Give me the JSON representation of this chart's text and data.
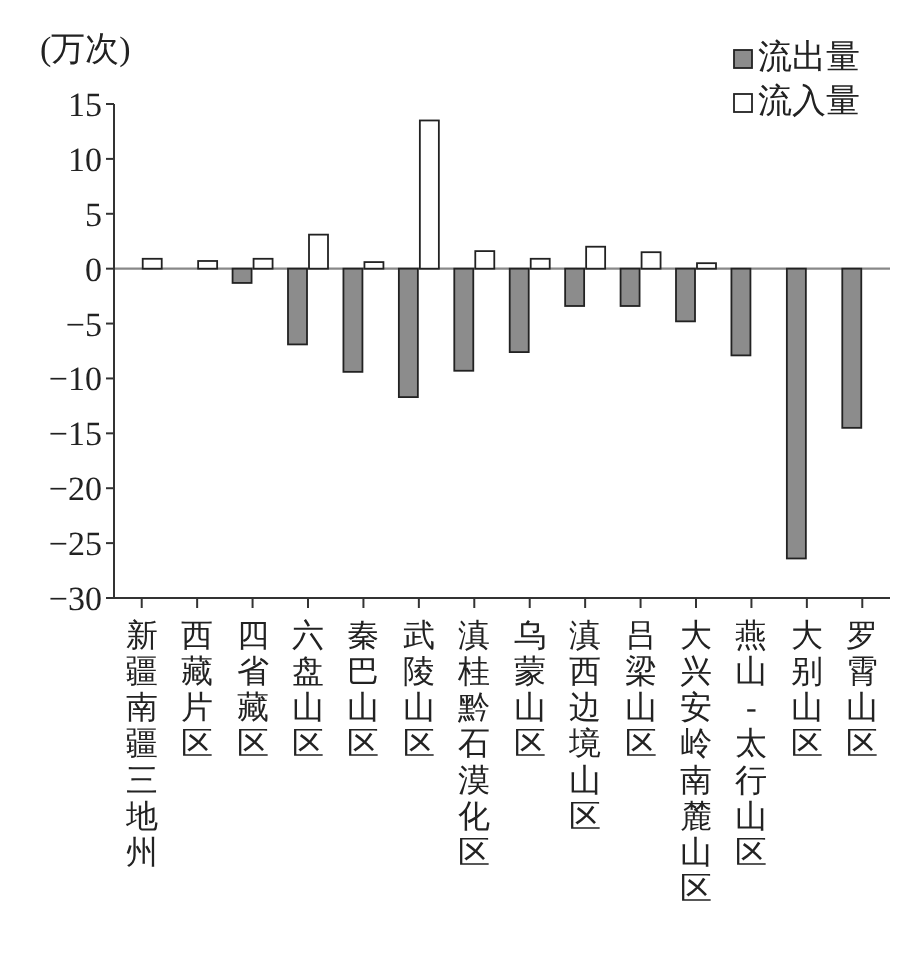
{
  "chart_data": {
    "type": "bar",
    "ylabel": "(万次)",
    "categories": [
      "新疆南疆三地州",
      "西藏片区",
      "四省藏区",
      "六盘山区",
      "秦巴山区",
      "武陵山区",
      "滇桂黔石漠化区",
      "乌蒙山区",
      "滇西边境山区",
      "吕梁山区",
      "大兴安岭南麓山区",
      "燕山-太行山区",
      "大别山区",
      "罗霄山区"
    ],
    "series": [
      {
        "name": "流出量",
        "color": "#8c8c8c",
        "values": [
          null,
          null,
          -1.3,
          -6.9,
          -9.4,
          -11.7,
          -9.3,
          -7.6,
          -3.4,
          -3.4,
          -4.8,
          -7.9,
          -26.4,
          -14.5
        ]
      },
      {
        "name": "流入量",
        "color": "#ffffff",
        "values": [
          0.9,
          0.7,
          0.9,
          3.1,
          0.6,
          13.5,
          1.6,
          0.9,
          2.0,
          1.5,
          0.5,
          null,
          null,
          null
        ]
      }
    ],
    "ylim": [
      -30,
      15
    ],
    "yticks": [
      -30,
      -25,
      -20,
      -15,
      -10,
      -5,
      0,
      5,
      10,
      15
    ],
    "ref_lines": [
      {
        "axis": "y",
        "value": 0,
        "color": "#888888"
      }
    ],
    "legend": "top right",
    "grid": false
  }
}
